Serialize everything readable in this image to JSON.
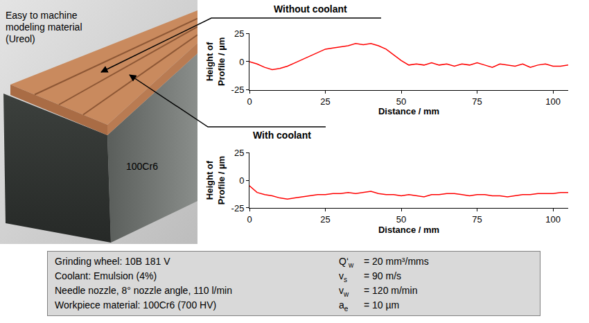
{
  "chart_data": [
    {
      "type": "line",
      "title": "Without coolant",
      "x_label": "Distance / mm",
      "y_label": "Height of Profile / µm",
      "x": [
        0,
        2.5,
        5,
        7.5,
        10,
        12.5,
        15,
        17.5,
        20,
        22.5,
        25,
        27.5,
        30,
        32.5,
        35,
        37.5,
        40,
        42.5,
        45,
        47.5,
        50,
        52.5,
        55,
        57.5,
        60,
        62.5,
        65,
        67.5,
        70,
        72.5,
        75,
        77.5,
        80,
        82.5,
        85,
        87.5,
        90,
        92.5,
        95,
        97.5,
        100,
        102.5,
        105
      ],
      "values": [
        0,
        -2,
        -5,
        -7,
        -6,
        -4,
        -1,
        2,
        5,
        8,
        11,
        12,
        13,
        14,
        16,
        15,
        16,
        14,
        11,
        6,
        1,
        -3,
        -2,
        -3,
        -1,
        -3,
        -2,
        -4,
        -2,
        -3,
        -1,
        -3,
        -5,
        -2,
        -3,
        -4,
        -2,
        -5,
        -3,
        -2,
        -4,
        -4,
        -3
      ],
      "color": "#ff0000",
      "xlim": [
        0,
        105
      ],
      "xticks": [
        0,
        25,
        50,
        75,
        100
      ],
      "ylim": [
        -25,
        25
      ],
      "yticks": [
        -25,
        0,
        25
      ],
      "grid": false
    },
    {
      "type": "line",
      "title": "With coolant",
      "x_label": "Distance / mm",
      "y_label": "Height of Profile / µm",
      "x": [
        0,
        2.5,
        5,
        7.5,
        10,
        12.5,
        15,
        17.5,
        20,
        22.5,
        25,
        27.5,
        30,
        32.5,
        35,
        37.5,
        40,
        42.5,
        45,
        47.5,
        50,
        52.5,
        55,
        57.5,
        60,
        62.5,
        65,
        67.5,
        70,
        72.5,
        75,
        77.5,
        80,
        82.5,
        85,
        87.5,
        90,
        92.5,
        95,
        97.5,
        100,
        102.5,
        105
      ],
      "values": [
        -5,
        -11,
        -13,
        -14,
        -16,
        -17,
        -16,
        -15,
        -14,
        -13,
        -13,
        -12,
        -12,
        -11,
        -12,
        -11,
        -10,
        -12,
        -13,
        -13,
        -14,
        -13,
        -14,
        -15,
        -13,
        -13,
        -12,
        -12,
        -13,
        -14,
        -13,
        -13,
        -14,
        -14,
        -15,
        -14,
        -13,
        -13,
        -12,
        -12,
        -12,
        -11,
        -11
      ],
      "color": "#ff0000",
      "xlim": [
        0,
        105
      ],
      "xticks": [
        0,
        25,
        50,
        75,
        100
      ],
      "ylim": [
        -25,
        25
      ],
      "yticks": [
        -25,
        0,
        25
      ],
      "grid": false
    }
  ],
  "photo": {
    "labels": [
      "Easy to machine modeling material (Ureol)",
      "100Cr6"
    ]
  },
  "parameters": {
    "left": [
      "Grinding wheel: 10B 181 V",
      "Coolant: Emulsion (4%)",
      "Needle nozzle, 8° nozzle angle, 110 l/min",
      "Workpiece material: 100Cr6 (700 HV)"
    ],
    "right": [
      {
        "symbol": "Q‘",
        "subscript": "w",
        "value": "= 20 mm³/mms"
      },
      {
        "symbol": "v",
        "subscript": "s",
        "value": "= 90 m/s"
      },
      {
        "symbol": "v",
        "subscript": "w",
        "value": "= 120 m/min"
      },
      {
        "symbol": "a",
        "subscript": "e",
        "value": "= 10 µm"
      }
    ]
  }
}
